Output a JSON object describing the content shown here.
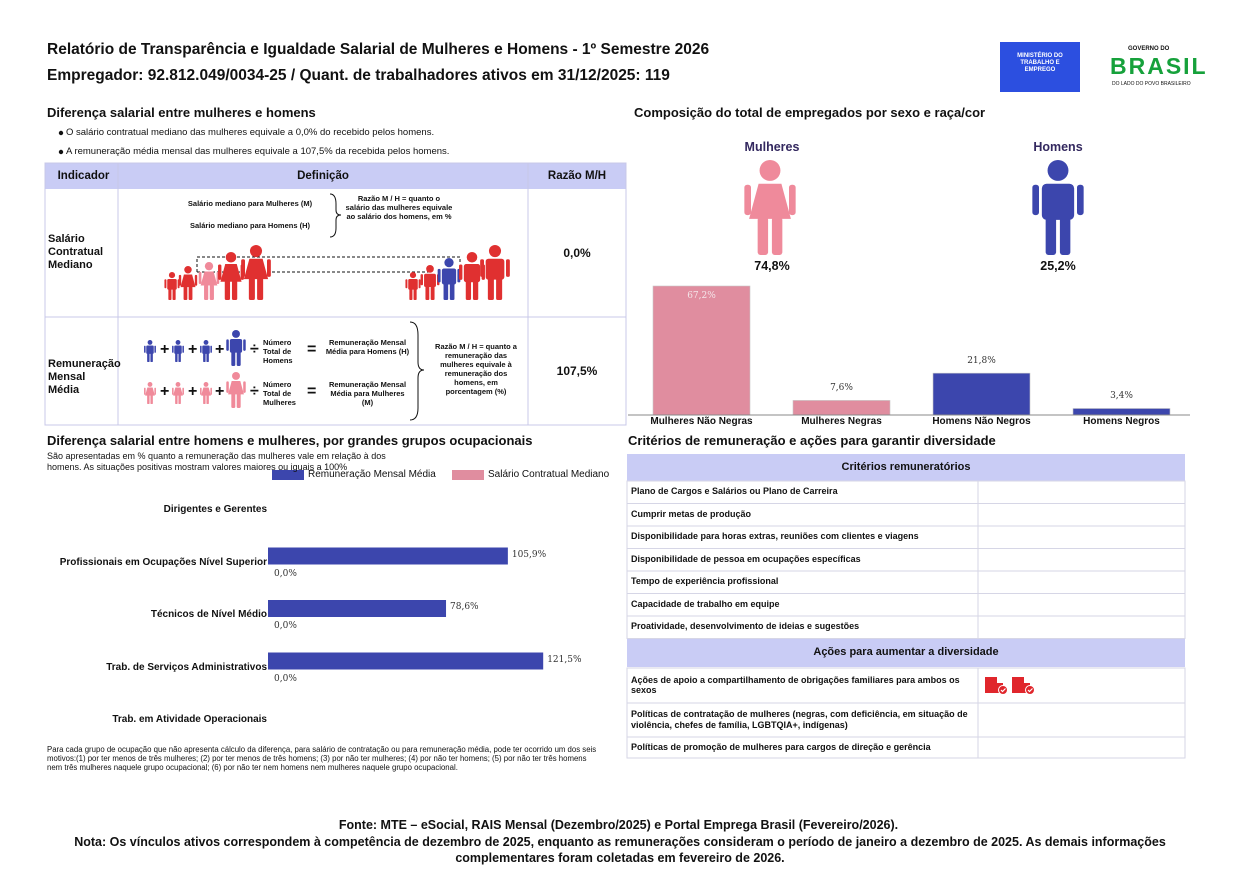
{
  "header": {
    "title": "Relatório de Transparência e Igualdade Salarial de Mulheres e Homens - 1º Semestre 2026",
    "subtitle": "Empregador: 92.812.049/0034-25 / Quant. de trabalhadores ativos em 31/12/2025: 119",
    "logo_ministry": "MINISTÉRIO DO TRABALHO E EMPREGO",
    "logo_gov_top": "GOVERNO DO",
    "logo_gov_name": "BRASIL",
    "logo_gov_tagline": "DO LADO DO POVO BRASILEIRO"
  },
  "salary_gap": {
    "title": "Diferença salarial entre mulheres e homens",
    "bullets": [
      "O salário contratual mediano das mulheres equivale a 0,0% do recebido pelos homens.",
      "A remuneração média mensal das mulheres equivale a 107,5% da recebida pelos homens."
    ],
    "table": {
      "headers": [
        "Indicador",
        "Definição",
        "Razão M/H"
      ],
      "rows": [
        {
          "indicator": "Salário Contratual Mediano",
          "ratio": "0,0%",
          "definition": {
            "women_median": "Salário mediano para Mulheres (M)",
            "men_median": "Salário mediano para Homens (H)",
            "ratio_note": "Razão M / H = quanto o salário das mulheres equivale ao salário dos homens, em %"
          }
        },
        {
          "indicator": "Remuneração Mensal Média",
          "ratio": "107,5%",
          "definition": {
            "men_count": "Número Total de Homens",
            "men_avg": "Remuneração Mensal Média para Homens (H)",
            "women_count": "Número Total de Mulheres",
            "women_avg": "Remuneração Mensal Média para Mulheres (M)",
            "ratio_note": "Razão M / H = quanto a remuneração das mulheres equivale à remuneração dos homens, em porcentagem (%)"
          }
        }
      ]
    },
    "symbols": {
      "plus": "+",
      "equals": "=",
      "divide": "÷"
    }
  },
  "composition": {
    "title": "Composição do total de empregados por sexo e raça/cor",
    "women_label": "Mulheres",
    "women_share": "74,8%",
    "men_label": "Homens",
    "men_share": "25,2%"
  },
  "chart_data": [
    {
      "type": "bar",
      "categories": [
        "Mulheres Não Negras",
        "Mulheres Negras",
        "Homens Não Negros",
        "Homens Negros"
      ],
      "values": [
        67.2,
        7.6,
        21.8,
        3.4
      ],
      "value_labels": [
        "67,2%",
        "7,6%",
        "21,8%",
        "3,4%"
      ],
      "colors": [
        "#e08d9f",
        "#e08d9f",
        "#3c46ad",
        "#3c46ad"
      ]
    },
    {
      "type": "hbar",
      "title": "Diferença salarial entre homens e mulheres, por grandes grupos ocupacionais",
      "subtitle": "São apresentadas em % quanto a remuneração das mulheres vale em relação à dos homens. As situações positivas mostram valores maiores ou iguais a 100%",
      "categories": [
        "Dirigentes e Gerentes",
        "Profissionais em Ocupações Nível Superior",
        "Técnicos de Nível Médio",
        "Trab. de Serviços Administrativos",
        "Trab. em Atividade Operacionais"
      ],
      "series": [
        {
          "name": "Remuneração Mensal Média",
          "color": "#3c46ad",
          "values": [
            null,
            105.9,
            78.6,
            121.5,
            null
          ],
          "value_labels": [
            null,
            "105,9%",
            "78,6%",
            "121,5%",
            null
          ]
        },
        {
          "name": "Salário Contratual Mediano",
          "color": "#e08d9f",
          "values": [
            null,
            0,
            0,
            0,
            null
          ],
          "value_labels": [
            null,
            "0,0%",
            "0,0%",
            "0,0%",
            null
          ]
        }
      ],
      "footnote": "Para cada grupo de ocupação que não apresenta cálculo da diferença, para salário de contratação ou para remuneração média, pode ter ocorrido um dos seis motivos:(1) por ter menos de três mulheres; (2) por ter menos de três homens; (3) por não ter mulheres; (4) por não ter homens; (5) por não ter três homens nem três mulheres naquele grupo ocupacional; (6) por não ter nem homens nem mulheres naquele grupo ocupacional."
    }
  ],
  "criteria": {
    "title": "Critérios de remuneração e ações para garantir diversidade",
    "pay_header": "Critérios remuneratórios",
    "pay_rows": [
      "Plano de Cargos e Salários ou Plano de Carreira",
      "Cumprir metas de produção",
      "Disponibilidade para horas extras, reuniões com clientes e viagens",
      "Disponibilidade de pessoa em ocupações específicas",
      "Tempo de experiência profissional",
      "Capacidade de trabalho em equipe",
      "Proatividade, desenvolvimento de ideias e sugestões"
    ],
    "diversity_header": "Ações para aumentar a diversidade",
    "diversity_rows": [
      "Ações de apoio a compartilhamento de obrigações familiares para ambos os sexos",
      "Políticas de contratação de mulheres (negras, com deficiência, em situação de violência, chefes de família, LGBTQIA+, indígenas)",
      "Políticas de promoção de mulheres para cargos de direção e gerência"
    ]
  },
  "footer": {
    "source": "Fonte: MTE – eSocial, RAIS Mensal (Dezembro/2025) e Portal Emprega Brasil (Fevereiro/2026).",
    "note": "Nota: Os vínculos ativos correspondem à competência de dezembro de 2025, enquanto as remunerações consideram o período de janeiro a dezembro de 2025. As demais informações complementares foram coletadas em fevereiro de 2026."
  }
}
